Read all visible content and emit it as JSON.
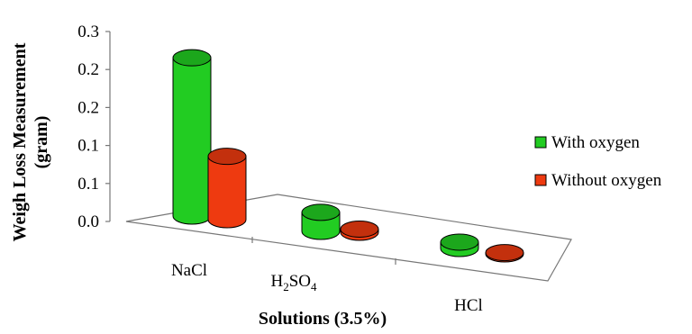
{
  "chart_data": {
    "type": "bar",
    "style": "3d-cylinder",
    "categories": [
      {
        "base": "NaCl",
        "sub1": "",
        "mid": "",
        "sub2": ""
      },
      {
        "base": "H",
        "sub1": "2",
        "mid": "SO",
        "sub2": "4"
      },
      {
        "base": "HCl",
        "sub1": "",
        "mid": "",
        "sub2": ""
      }
    ],
    "series": [
      {
        "name": "With oxygen",
        "color": "#22cc22",
        "values": [
          0.25,
          0.03,
          0.01
        ]
      },
      {
        "name": "Without oxygen",
        "color": "#ee3a10",
        "values": [
          0.1,
          0.005,
          0.002
        ]
      }
    ],
    "yticks": [
      "0.0",
      "0.1",
      "0.1",
      "0.2",
      "0.2",
      "0.3"
    ],
    "ylim": [
      0,
      0.3
    ],
    "xlabel": "Solutions (3.5%)",
    "ylabel_line1": "Weigh Loss Measurement",
    "ylabel_line2": "(gram)",
    "legend_position": "right",
    "grid": false
  }
}
